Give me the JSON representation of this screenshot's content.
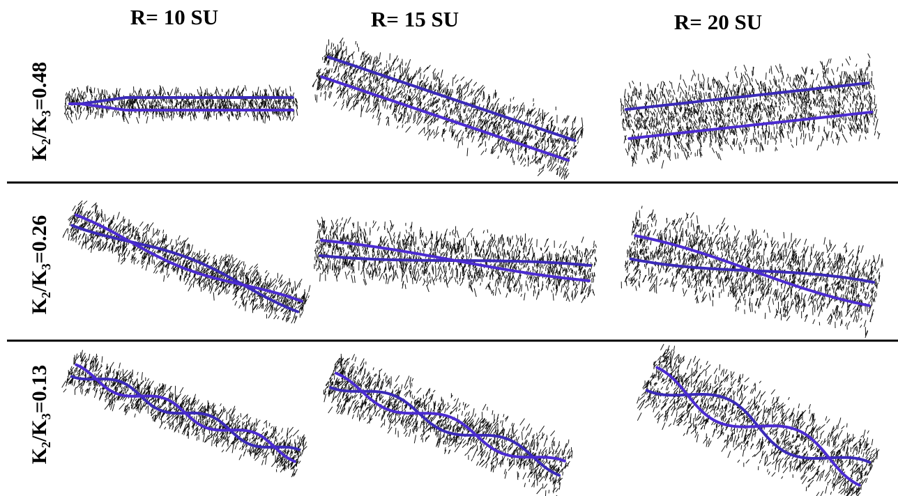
{
  "header": {
    "columns": [
      "R= 10 SU",
      "R= 15 SU",
      "R= 20 SU"
    ]
  },
  "rows": [
    "K₂/K₃=0.48",
    "K₂/K₃=0.26",
    "K₂/K₃=0.13"
  ]
}
